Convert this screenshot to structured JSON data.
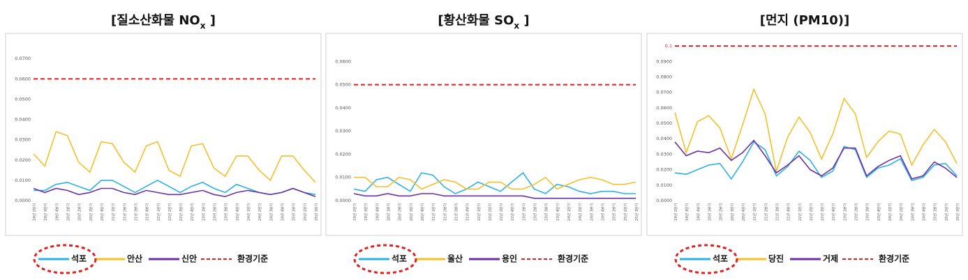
{
  "chart_data": [
    {
      "type": "line",
      "title": [
        "[질소산화물 NO",
        "x",
        " ]"
      ],
      "categories": [
        "19년 2분기",
        "19년 3분기",
        "19년 4분기",
        "20년 1분기",
        "20년 2분기",
        "20년 3분기",
        "20년 4분기",
        "21년 1분기",
        "21년 2분기",
        "21년 3분기",
        "21년 4분기",
        "22년 1분기",
        "22년 2분기",
        "22년 3분기",
        "22년 4분기",
        "23년 1분기",
        "23년 2분기",
        "23년 3분기",
        "23년 4분기",
        "24년 1분기",
        "24년 2분기",
        "24년 3분기",
        "24년 4분기",
        "25년 1분기",
        "25년 2분기",
        "25년 3분기"
      ],
      "series": [
        {
          "name": "석포",
          "color": "#2ab0e8",
          "values": [
            0.005,
            0.005,
            0.008,
            0.009,
            0.007,
            0.005,
            0.01,
            0.01,
            0.007,
            0.004,
            0.007,
            0.01,
            0.007,
            0.004,
            0.007,
            0.009,
            0.006,
            0.004,
            0.008,
            0.006,
            0.004,
            0.003,
            0.004,
            0.006,
            0.004,
            0.003
          ]
        },
        {
          "name": "안산",
          "color": "#f5bf2a",
          "values": [
            0.023,
            0.017,
            0.034,
            0.032,
            0.019,
            0.014,
            0.029,
            0.028,
            0.019,
            0.014,
            0.027,
            0.029,
            0.015,
            0.012,
            0.027,
            0.028,
            0.016,
            0.012,
            0.022,
            0.022,
            0.015,
            0.01,
            0.022,
            0.022,
            0.015,
            0.009
          ]
        },
        {
          "name": "신안",
          "color": "#6a2fa0",
          "values": [
            0.006,
            0.004,
            0.006,
            0.005,
            0.003,
            0.004,
            0.006,
            0.006,
            0.004,
            0.003,
            0.005,
            0.004,
            0.003,
            0.003,
            0.004,
            0.005,
            0.003,
            0.002,
            0.004,
            0.005,
            0.004,
            0.003,
            0.004,
            0.006,
            0.004,
            0.002
          ]
        }
      ],
      "reference": {
        "name": "환경기준",
        "value": 0.06,
        "color": "#e02020"
      },
      "ylim": [
        0,
        0.08
      ],
      "yticks": [
        {
          "value": 0,
          "label": "0.0000"
        },
        {
          "value": 0.01,
          "label": "0.0100"
        },
        {
          "value": 0.02,
          "label": "0.0200"
        },
        {
          "value": 0.03,
          "label": "0.0300"
        },
        {
          "value": 0.04,
          "label": "0.0400"
        },
        {
          "value": 0.05,
          "label": "0.0500"
        },
        {
          "value": 0.06,
          "label": "0.0600"
        },
        {
          "value": 0.07,
          "label": "0.0700"
        }
      ]
    },
    {
      "type": "line",
      "title": [
        "[황산화물 SO",
        "x",
        " ]"
      ],
      "categories": [
        "19년 2분기",
        "19년 3분기",
        "19년 4분기",
        "20년 1분기",
        "20년 2분기",
        "20년 3분기",
        "20년 4분기",
        "21년 1분기",
        "21년 2분기",
        "21년 3분기",
        "21년 4분기",
        "22년 1분기",
        "22년 2분기",
        "22년 3분기",
        "22년 4분기",
        "23년 1분기",
        "23년 2분기",
        "23년 3분기",
        "23년 4분기",
        "24년 1분기",
        "24년 2분기",
        "24년 3분기",
        "24년 4분기",
        "25년 1분기",
        "25년 2분기",
        "25년 3분기"
      ],
      "series": [
        {
          "name": "석포",
          "color": "#2ab0e8",
          "values": [
            0.005,
            0.004,
            0.009,
            0.01,
            0.007,
            0.004,
            0.012,
            0.011,
            0.006,
            0.003,
            0.005,
            0.008,
            0.006,
            0.004,
            0.008,
            0.012,
            0.005,
            0.003,
            0.007,
            0.006,
            0.004,
            0.003,
            0.004,
            0.004,
            0.003,
            0.003
          ]
        },
        {
          "name": "울산",
          "color": "#f5bf2a",
          "values": [
            0.01,
            0.01,
            0.006,
            0.006,
            0.01,
            0.009,
            0.005,
            0.007,
            0.009,
            0.008,
            0.005,
            0.005,
            0.008,
            0.008,
            0.005,
            0.005,
            0.007,
            0.01,
            0.005,
            0.007,
            0.009,
            0.01,
            0.009,
            0.007,
            0.007,
            0.008
          ]
        },
        {
          "name": "용인",
          "color": "#6a2fa0",
          "values": [
            0.003,
            0.002,
            0.002,
            0.003,
            0.002,
            0.002,
            0.003,
            0.003,
            0.002,
            0.002,
            0.002,
            0.002,
            0.002,
            0.002,
            0.002,
            0.002,
            0.001,
            0.001,
            0.001,
            0.001,
            0.001,
            0.001,
            0.001,
            0.001,
            0.001,
            0.001
          ]
        }
      ],
      "reference": {
        "name": "환경기준",
        "value": 0.05,
        "color": "#e02020"
      },
      "ylim": [
        0,
        0.07
      ],
      "yticks": [
        {
          "value": 0,
          "label": "0.0000"
        },
        {
          "value": 0.01,
          "label": "0.0100"
        },
        {
          "value": 0.02,
          "label": "0.0200"
        },
        {
          "value": 0.03,
          "label": "0.0300"
        },
        {
          "value": 0.04,
          "label": "0.0400"
        },
        {
          "value": 0.05,
          "label": "0.0500"
        },
        {
          "value": 0.06,
          "label": "0.0600"
        }
      ]
    },
    {
      "type": "line",
      "title": [
        "[먼지 (PM10)]"
      ],
      "categories": [
        "19년 2분기",
        "19년 3분기",
        "19년 4분기",
        "20년 1분기",
        "20년 2분기",
        "20년 3분기",
        "20년 4분기",
        "21년 1분기",
        "21년 2분기",
        "21년 3분기",
        "21년 4분기",
        "22년 1분기",
        "22년 2분기",
        "22년 3분기",
        "22년 4분기",
        "23년 1분기",
        "23년 2분기",
        "23년 3분기",
        "23년 4분기",
        "24년 1분기",
        "24년 2분기",
        "24년 3분기",
        "24년 4분기",
        "25년 1분기",
        "25년 2분기",
        "25년 3분기"
      ],
      "series": [
        {
          "name": "석포",
          "color": "#2ab0e8",
          "values": [
            0.018,
            0.017,
            0.02,
            0.023,
            0.024,
            0.014,
            0.025,
            0.038,
            0.033,
            0.016,
            0.022,
            0.032,
            0.026,
            0.015,
            0.019,
            0.035,
            0.033,
            0.015,
            0.021,
            0.023,
            0.027,
            0.013,
            0.015,
            0.023,
            0.024,
            0.016
          ]
        },
        {
          "name": "당진",
          "color": "#f5bf2a",
          "values": [
            0.057,
            0.031,
            0.051,
            0.055,
            0.047,
            0.027,
            0.049,
            0.072,
            0.056,
            0.019,
            0.041,
            0.054,
            0.044,
            0.027,
            0.043,
            0.066,
            0.056,
            0.028,
            0.038,
            0.045,
            0.043,
            0.023,
            0.036,
            0.046,
            0.038,
            0.024
          ]
        },
        {
          "name": "거제",
          "color": "#6a2fa0",
          "values": [
            0.038,
            0.029,
            0.032,
            0.031,
            0.034,
            0.026,
            0.031,
            0.039,
            0.029,
            0.018,
            0.023,
            0.029,
            0.02,
            0.016,
            0.021,
            0.034,
            0.034,
            0.016,
            0.022,
            0.026,
            0.029,
            0.014,
            0.016,
            0.025,
            0.021,
            0.015
          ]
        }
      ],
      "reference": {
        "name": "환경기준",
        "value": 0.1,
        "color": "#e02020"
      },
      "ylim": [
        0,
        0.105
      ],
      "yticks": [
        {
          "value": 0,
          "label": "0.0000"
        },
        {
          "value": 0.01,
          "label": "0.0100"
        },
        {
          "value": 0.02,
          "label": "0.0200"
        },
        {
          "value": 0.03,
          "label": "0.0300"
        },
        {
          "value": 0.04,
          "label": "0.0400"
        },
        {
          "value": 0.05,
          "label": "0.0500"
        },
        {
          "value": 0.06,
          "label": "0.0600"
        },
        {
          "value": 0.07,
          "label": "0.0700"
        },
        {
          "value": 0.08,
          "label": "0.0800"
        },
        {
          "value": 0.09,
          "label": "0.0900"
        },
        {
          "value": 0.1,
          "label": "0.1",
          "color": "#e02020"
        }
      ]
    }
  ]
}
